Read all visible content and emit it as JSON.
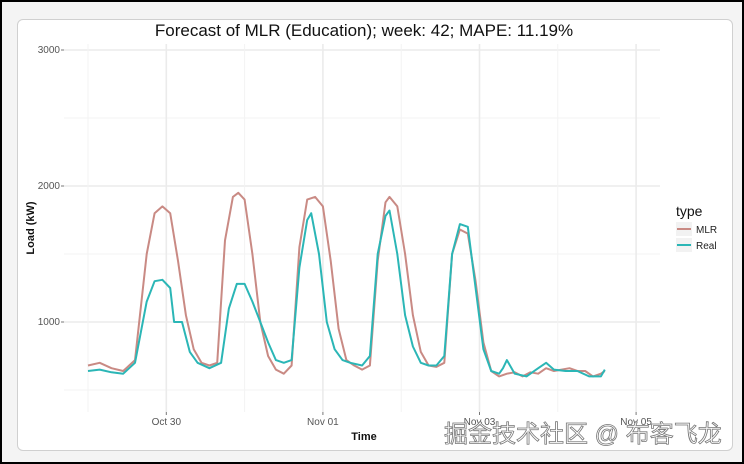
{
  "chart_data": {
    "type": "line",
    "title": "Forecast of MLR (Education); week: 42; MAPE: 11.19%",
    "xlabel": "Time",
    "ylabel": "Load (kW)",
    "ylim": [
      400,
      3000
    ],
    "yticks": [
      1000,
      2000,
      3000
    ],
    "xticks": [
      "Oct 30",
      "Nov 01",
      "Nov 03",
      "Nov 05"
    ],
    "x_range": [
      "Oct 29",
      "Nov 05"
    ],
    "grid": true,
    "legend": {
      "title": "type",
      "position": "right",
      "entries": [
        "MLR",
        "Real"
      ]
    },
    "series": [
      {
        "name": "MLR",
        "color": "#c98a84",
        "points": [
          [
            0,
            680
          ],
          [
            0.15,
            700
          ],
          [
            0.3,
            660
          ],
          [
            0.45,
            640
          ],
          [
            0.6,
            720
          ],
          [
            0.75,
            1500
          ],
          [
            0.85,
            1800
          ],
          [
            0.95,
            1850
          ],
          [
            1.05,
            1800
          ],
          [
            1.15,
            1450
          ],
          [
            1.25,
            1050
          ],
          [
            1.35,
            800
          ],
          [
            1.45,
            700
          ],
          [
            1.55,
            680
          ],
          [
            1.65,
            700
          ],
          [
            1.75,
            1600
          ],
          [
            1.85,
            1920
          ],
          [
            1.92,
            1950
          ],
          [
            2.0,
            1900
          ],
          [
            2.1,
            1500
          ],
          [
            2.2,
            1000
          ],
          [
            2.3,
            750
          ],
          [
            2.4,
            650
          ],
          [
            2.5,
            620
          ],
          [
            2.6,
            680
          ],
          [
            2.7,
            1550
          ],
          [
            2.8,
            1900
          ],
          [
            2.9,
            1920
          ],
          [
            3.0,
            1850
          ],
          [
            3.1,
            1450
          ],
          [
            3.2,
            950
          ],
          [
            3.3,
            720
          ],
          [
            3.4,
            680
          ],
          [
            3.5,
            650
          ],
          [
            3.6,
            680
          ],
          [
            3.7,
            1450
          ],
          [
            3.8,
            1880
          ],
          [
            3.85,
            1920
          ],
          [
            3.95,
            1850
          ],
          [
            4.05,
            1500
          ],
          [
            4.15,
            1050
          ],
          [
            4.25,
            780
          ],
          [
            4.35,
            680
          ],
          [
            4.45,
            670
          ],
          [
            4.55,
            700
          ],
          [
            4.65,
            1500
          ],
          [
            4.75,
            1680
          ],
          [
            4.85,
            1650
          ],
          [
            4.95,
            1300
          ],
          [
            5.05,
            850
          ],
          [
            5.15,
            640
          ],
          [
            5.25,
            600
          ],
          [
            5.35,
            620
          ],
          [
            5.45,
            630
          ],
          [
            5.55,
            600
          ],
          [
            5.65,
            630
          ],
          [
            5.75,
            620
          ],
          [
            5.85,
            660
          ],
          [
            5.95,
            640
          ],
          [
            6.05,
            650
          ],
          [
            6.15,
            660
          ],
          [
            6.25,
            640
          ],
          [
            6.35,
            640
          ],
          [
            6.45,
            600
          ],
          [
            6.55,
            620
          ],
          [
            6.6,
            640
          ]
        ]
      },
      {
        "name": "Real",
        "color": "#2bb6b6",
        "points": [
          [
            0,
            640
          ],
          [
            0.15,
            650
          ],
          [
            0.3,
            630
          ],
          [
            0.45,
            620
          ],
          [
            0.6,
            700
          ],
          [
            0.75,
            1150
          ],
          [
            0.85,
            1300
          ],
          [
            0.95,
            1310
          ],
          [
            1.05,
            1250
          ],
          [
            1.1,
            1000
          ],
          [
            1.2,
            1000
          ],
          [
            1.3,
            780
          ],
          [
            1.4,
            700
          ],
          [
            1.55,
            660
          ],
          [
            1.7,
            700
          ],
          [
            1.8,
            1100
          ],
          [
            1.9,
            1280
          ],
          [
            2.0,
            1280
          ],
          [
            2.1,
            1150
          ],
          [
            2.2,
            1000
          ],
          [
            2.3,
            850
          ],
          [
            2.4,
            720
          ],
          [
            2.5,
            700
          ],
          [
            2.6,
            720
          ],
          [
            2.7,
            1400
          ],
          [
            2.8,
            1750
          ],
          [
            2.85,
            1800
          ],
          [
            2.95,
            1500
          ],
          [
            3.05,
            1000
          ],
          [
            3.15,
            800
          ],
          [
            3.25,
            720
          ],
          [
            3.35,
            700
          ],
          [
            3.5,
            680
          ],
          [
            3.6,
            750
          ],
          [
            3.7,
            1500
          ],
          [
            3.8,
            1780
          ],
          [
            3.85,
            1820
          ],
          [
            3.95,
            1500
          ],
          [
            4.05,
            1050
          ],
          [
            4.15,
            820
          ],
          [
            4.25,
            700
          ],
          [
            4.35,
            680
          ],
          [
            4.45,
            680
          ],
          [
            4.55,
            750
          ],
          [
            4.65,
            1500
          ],
          [
            4.75,
            1720
          ],
          [
            4.85,
            1700
          ],
          [
            4.95,
            1250
          ],
          [
            5.05,
            800
          ],
          [
            5.15,
            640
          ],
          [
            5.25,
            620
          ],
          [
            5.3,
            660
          ],
          [
            5.35,
            720
          ],
          [
            5.45,
            620
          ],
          [
            5.6,
            600
          ],
          [
            5.75,
            660
          ],
          [
            5.85,
            700
          ],
          [
            5.95,
            650
          ],
          [
            6.1,
            640
          ],
          [
            6.25,
            640
          ],
          [
            6.4,
            600
          ],
          [
            6.55,
            600
          ],
          [
            6.6,
            650
          ]
        ]
      }
    ]
  },
  "watermark": "掘金技术社区 @ 布客飞龙"
}
